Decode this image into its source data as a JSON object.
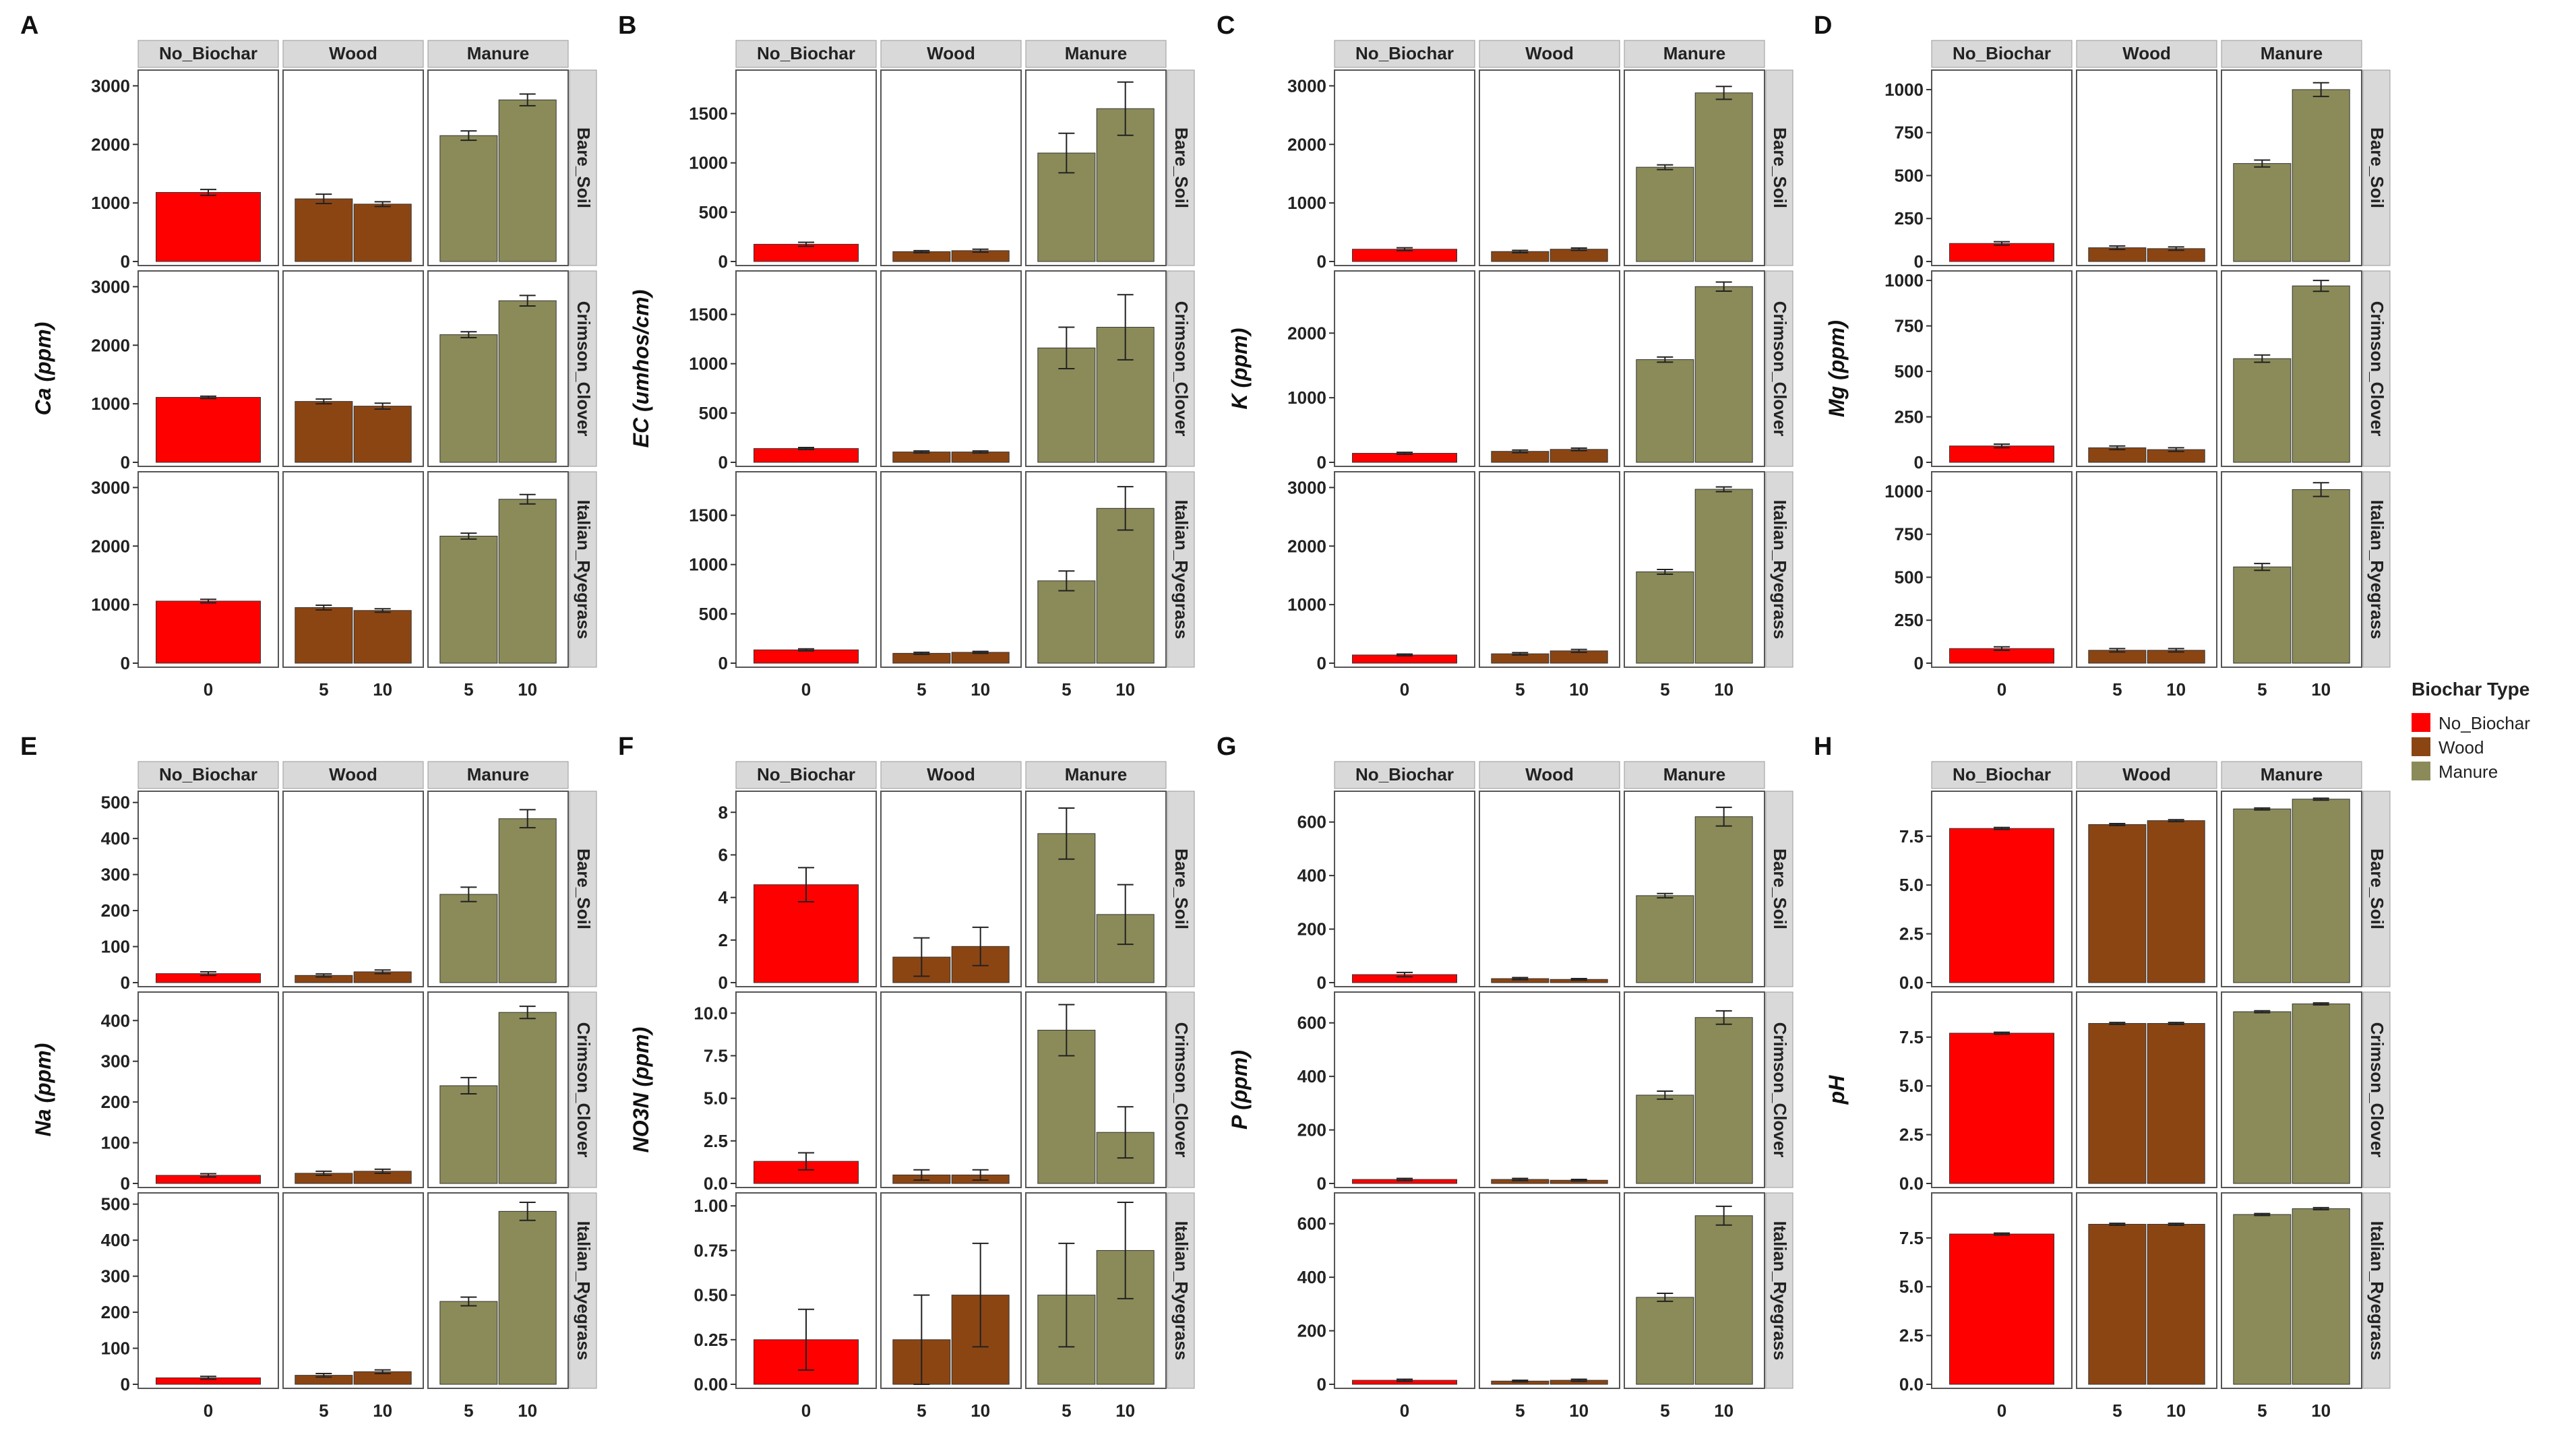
{
  "figure": {
    "facet_columns": [
      "No_Biochar",
      "Wood",
      "Manure"
    ],
    "facet_rows": [
      "Bare_Soil",
      "Crimson_Clover",
      "Italian_Ryegrass"
    ],
    "x_ticks": {
      "No_Biochar": [
        "0"
      ],
      "Wood": [
        "5",
        "10"
      ],
      "Manure": [
        "5",
        "10"
      ]
    },
    "colors": {
      "No_Biochar": "#ff0000",
      "Wood": "#8b4513",
      "Manure": "#8b8b5a",
      "strip": "#d9d9d9",
      "panel_border": "#555555"
    },
    "legend": {
      "title": "Biochar Type",
      "items": [
        "No_Biochar",
        "Wood",
        "Manure"
      ]
    }
  },
  "chart_data": [
    {
      "type": "bar",
      "letter": "A",
      "ylabel": "Ca (ppm)",
      "row_ylims": [
        [
          0,
          3200
        ],
        [
          0,
          3200
        ],
        [
          0,
          3200
        ]
      ],
      "row_ticks": [
        [
          "0",
          "1000",
          "2000",
          "3000"
        ],
        [
          "0",
          "1000",
          "2000",
          "3000"
        ],
        [
          "0",
          "1000",
          "2000",
          "3000"
        ]
      ],
      "series": [
        {
          "name": "Bare_Soil",
          "values": [
            1180,
            1070,
            980,
            2150,
            2760
          ],
          "errors": [
            50,
            80,
            40,
            80,
            100
          ]
        },
        {
          "name": "Crimson_Clover",
          "values": [
            1110,
            1040,
            960,
            2180,
            2760
          ],
          "errors": [
            20,
            40,
            50,
            50,
            90
          ]
        },
        {
          "name": "Italian_Ryegrass",
          "values": [
            1060,
            950,
            900,
            2170,
            2800
          ],
          "errors": [
            30,
            40,
            30,
            50,
            80
          ]
        }
      ]
    },
    {
      "type": "bar",
      "letter": "B",
      "ylabel": "EC (umhos/cm)",
      "row_ylims": [
        [
          0,
          1900
        ],
        [
          0,
          1900
        ],
        [
          0,
          1900
        ]
      ],
      "row_ticks": [
        [
          "0",
          "500",
          "1000",
          "1500"
        ],
        [
          "0",
          "500",
          "1000",
          "1500"
        ],
        [
          "0",
          "500",
          "1000",
          "1500"
        ]
      ],
      "series": [
        {
          "name": "Bare_Soil",
          "values": [
            175,
            100,
            110,
            1100,
            1550
          ],
          "errors": [
            20,
            10,
            15,
            200,
            270
          ]
        },
        {
          "name": "Crimson_Clover",
          "values": [
            140,
            105,
            105,
            1160,
            1370
          ],
          "errors": [
            10,
            10,
            10,
            210,
            330
          ]
        },
        {
          "name": "Italian_Ryegrass",
          "values": [
            135,
            100,
            110,
            835,
            1570
          ],
          "errors": [
            10,
            10,
            10,
            100,
            220
          ]
        }
      ]
    },
    {
      "type": "bar",
      "letter": "C",
      "ylabel": "K (ppm)",
      "row_ylims": [
        [
          0,
          3200
        ],
        [
          0,
          2900
        ],
        [
          0,
          3200
        ]
      ],
      "row_ticks": [
        [
          "0",
          "1000",
          "2000",
          "3000"
        ],
        [
          "0",
          "1000",
          "2000"
        ],
        [
          "0",
          "1000",
          "2000",
          "3000"
        ]
      ],
      "series": [
        {
          "name": "Bare_Soil",
          "values": [
            210,
            170,
            210,
            1610,
            2880
          ],
          "errors": [
            25,
            20,
            20,
            40,
            110
          ]
        },
        {
          "name": "Crimson_Clover",
          "values": [
            140,
            170,
            200,
            1590,
            2720
          ],
          "errors": [
            15,
            20,
            20,
            40,
            70
          ]
        },
        {
          "name": "Italian_Ryegrass",
          "values": [
            140,
            160,
            210,
            1560,
            2970
          ],
          "errors": [
            15,
            20,
            25,
            40,
            40
          ]
        }
      ]
    },
    {
      "type": "bar",
      "letter": "D",
      "ylabel": "Mg (ppm)",
      "row_ylims": [
        [
          0,
          1090
        ],
        [
          0,
          1030
        ],
        [
          0,
          1090
        ]
      ],
      "row_ticks": [
        [
          "0",
          "250",
          "500",
          "750",
          "1000"
        ],
        [
          "0",
          "250",
          "500",
          "750",
          "1000"
        ],
        [
          "0",
          "250",
          "500",
          "750",
          "1000"
        ]
      ],
      "series": [
        {
          "name": "Bare_Soil",
          "values": [
            105,
            80,
            75,
            570,
            1000
          ],
          "errors": [
            10,
            10,
            10,
            20,
            40
          ]
        },
        {
          "name": "Crimson_Clover",
          "values": [
            90,
            80,
            70,
            570,
            970
          ],
          "errors": [
            10,
            10,
            10,
            20,
            30
          ]
        },
        {
          "name": "Italian_Ryegrass",
          "values": [
            85,
            75,
            75,
            560,
            1010
          ],
          "errors": [
            10,
            10,
            10,
            20,
            40
          ]
        }
      ]
    },
    {
      "type": "bar",
      "letter": "E",
      "ylabel": "Na (ppm)",
      "row_ylims": [
        [
          0,
          520
        ],
        [
          0,
          460
        ],
        [
          0,
          520
        ]
      ],
      "row_ticks": [
        [
          "0",
          "100",
          "200",
          "300",
          "400",
          "500"
        ],
        [
          "0",
          "100",
          "200",
          "300",
          "400"
        ],
        [
          "0",
          "100",
          "200",
          "300",
          "400",
          "500"
        ]
      ],
      "series": [
        {
          "name": "Bare_Soil",
          "values": [
            25,
            20,
            30,
            245,
            455
          ],
          "errors": [
            5,
            4,
            5,
            20,
            25
          ]
        },
        {
          "name": "Crimson_Clover",
          "values": [
            20,
            25,
            30,
            240,
            420
          ],
          "errors": [
            4,
            5,
            5,
            20,
            15
          ]
        },
        {
          "name": "Italian_Ryegrass",
          "values": [
            18,
            25,
            35,
            230,
            480
          ],
          "errors": [
            4,
            5,
            5,
            12,
            25
          ]
        }
      ]
    },
    {
      "type": "bar",
      "letter": "F",
      "ylabel": "NO3N (ppm)",
      "row_ylims": [
        [
          0,
          8.8
        ],
        [
          0,
          11
        ],
        [
          0,
          1.05
        ]
      ],
      "row_ticks": [
        [
          "0",
          "2",
          "4",
          "6",
          "8"
        ],
        [
          "0.0",
          "2.5",
          "5.0",
          "7.5",
          "10.0"
        ],
        [
          "0.00",
          "0.25",
          "0.50",
          "0.75",
          "1.00"
        ]
      ],
      "series": [
        {
          "name": "Bare_Soil",
          "values": [
            4.6,
            1.2,
            1.7,
            7.0,
            3.2
          ],
          "errors": [
            0.8,
            0.9,
            0.9,
            1.2,
            1.4
          ]
        },
        {
          "name": "Crimson_Clover",
          "values": [
            1.3,
            0.5,
            0.5,
            9.0,
            3.0
          ],
          "errors": [
            0.5,
            0.3,
            0.3,
            1.5,
            1.5
          ]
        },
        {
          "name": "Italian_Ryegrass",
          "values": [
            0.25,
            0.25,
            0.5,
            0.5,
            0.75
          ],
          "errors": [
            0.17,
            0.25,
            0.29,
            0.29,
            0.27
          ]
        }
      ]
    },
    {
      "type": "bar",
      "letter": "G",
      "ylabel": "P (ppm)",
      "row_ylims": [
        [
          0,
          700
        ],
        [
          0,
          700
        ],
        [
          0,
          700
        ]
      ],
      "row_ticks": [
        [
          "0",
          "200",
          "400",
          "600"
        ],
        [
          "0",
          "200",
          "400",
          "600"
        ],
        [
          "0",
          "200",
          "400",
          "600"
        ]
      ],
      "series": [
        {
          "name": "Bare_Soil",
          "values": [
            30,
            15,
            12,
            325,
            620
          ],
          "errors": [
            8,
            4,
            3,
            8,
            35
          ]
        },
        {
          "name": "Crimson_Clover",
          "values": [
            15,
            15,
            12,
            330,
            620
          ],
          "errors": [
            4,
            4,
            3,
            15,
            25
          ]
        },
        {
          "name": "Italian_Ryegrass",
          "values": [
            15,
            12,
            15,
            325,
            630
          ],
          "errors": [
            4,
            3,
            4,
            15,
            35
          ]
        }
      ]
    },
    {
      "type": "bar",
      "letter": "H",
      "ylabel": "pH",
      "row_ylims": [
        [
          0,
          9.6
        ],
        [
          0,
          9.6
        ],
        [
          0,
          9.6
        ]
      ],
      "row_ticks": [
        [
          "0.0",
          "2.5",
          "5.0",
          "7.5"
        ],
        [
          "0.0",
          "2.5",
          "5.0",
          "7.5"
        ],
        [
          "0.0",
          "2.5",
          "5.0",
          "7.5"
        ]
      ],
      "series": [
        {
          "name": "Bare_Soil",
          "values": [
            7.9,
            8.1,
            8.3,
            8.9,
            9.4
          ],
          "errors": [
            0.05,
            0.05,
            0.05,
            0.05,
            0.05
          ]
        },
        {
          "name": "Crimson_Clover",
          "values": [
            7.7,
            8.2,
            8.2,
            8.8,
            9.2
          ],
          "errors": [
            0.05,
            0.05,
            0.05,
            0.05,
            0.05
          ]
        },
        {
          "name": "Italian_Ryegrass",
          "values": [
            7.7,
            8.2,
            8.2,
            8.7,
            9.0
          ],
          "errors": [
            0.05,
            0.05,
            0.05,
            0.05,
            0.05
          ]
        }
      ]
    }
  ]
}
